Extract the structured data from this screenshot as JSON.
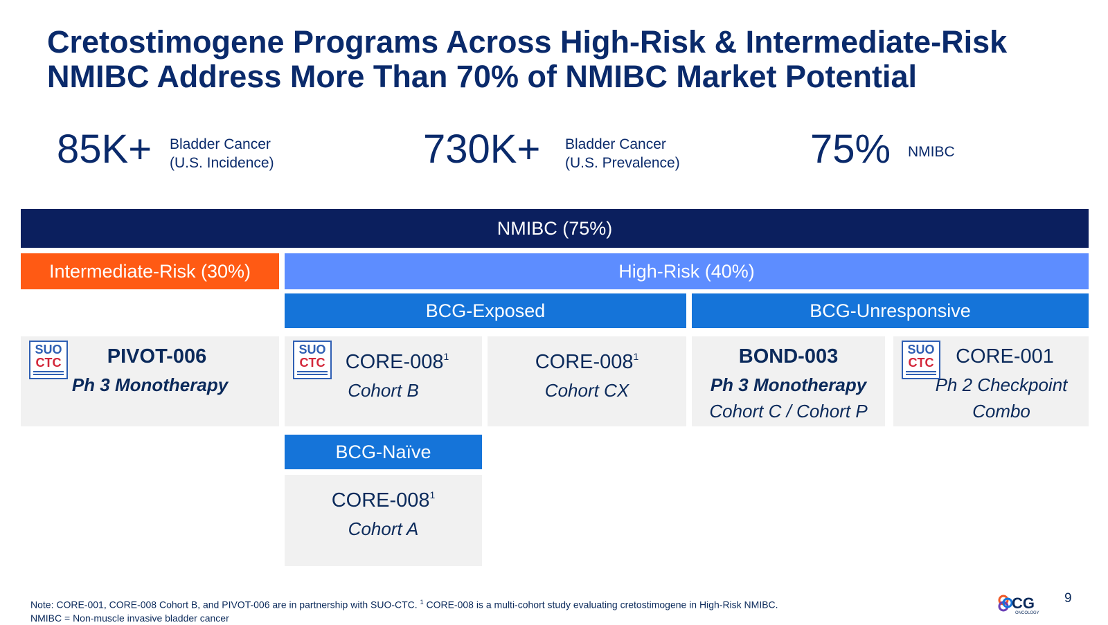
{
  "title": {
    "line1": "Cretostimogene Programs Across High-Risk & Intermediate-Risk",
    "line2": "NMIBC Address More Than 70% of NMIBC Market Potential"
  },
  "stats": [
    {
      "value": "85K+",
      "label1": "Bladder Cancer",
      "label2": "(U.S. Incidence)"
    },
    {
      "value": "730K+",
      "label1": "Bladder Cancer",
      "label2": "(U.S. Prevalence)"
    },
    {
      "value": "75%",
      "label1": "NMIBC",
      "label2": ""
    }
  ],
  "bars": {
    "nmibc": "NMIBC (75%)",
    "intermediate_risk": "Intermediate-Risk (30%)",
    "high_risk": "High-Risk (40%)",
    "bcg_exposed": "BCG-Exposed",
    "bcg_unresponsive": "BCG-Unresponsive",
    "bcg_naive": "BCG-Naïve"
  },
  "logo": {
    "line1": "SUO",
    "line2": "CTC"
  },
  "cards": {
    "pivot006": {
      "name": "PIVOT-006",
      "line2": "Ph 3 Monotherapy"
    },
    "core008b": {
      "name": "CORE-008",
      "sup": "1",
      "line2": "Cohort B"
    },
    "core008cx": {
      "name": "CORE-008",
      "sup": "1",
      "line2": "Cohort CX"
    },
    "bond003": {
      "name": "BOND-003",
      "line2": "Ph 3 Monotherapy",
      "line3": "Cohort C / Cohort P"
    },
    "core001": {
      "name": "CORE-001",
      "line2": "Ph 2  Checkpoint",
      "line3": "Combo"
    },
    "core008a": {
      "name": "CORE-008",
      "sup": "1",
      "line2": "Cohort A"
    }
  },
  "footer": {
    "note_part1": "Note: CORE-001, CORE-008 Cohort B, and PIVOT-006 are in partnership with SUO-CTC. ",
    "note_sup": "1",
    "note_part2": " CORE-008 is a multi-cohort study evaluating cretostimogene in High-Risk NMIBC.",
    "note_line2": "NMIBC = Non-muscle invasive bladder cancer",
    "page_number": "9",
    "brand_text": "CG",
    "brand_sub": "ONCOLOGY"
  },
  "colors": {
    "navy": "#0b1f5e",
    "orange": "#ff5a14",
    "light_blue": "#5d8dff",
    "mid_blue": "#1574d9",
    "card_bg": "#f1f1f1",
    "title": "#0a2a6b"
  }
}
